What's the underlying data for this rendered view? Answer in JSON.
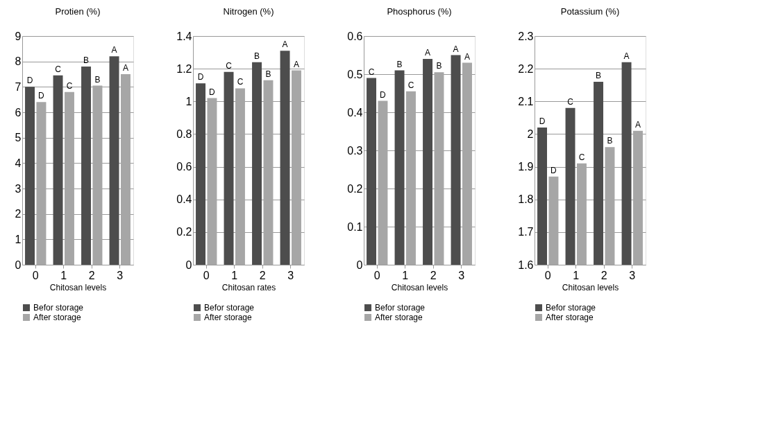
{
  "chart_data": [
    {
      "type": "bar",
      "title": "Protien (%)",
      "xlabel": "Chitosan levels",
      "categories": [
        "0",
        "1",
        "2",
        "3"
      ],
      "ylim": [
        0,
        9
      ],
      "yticks": [
        0,
        1,
        2,
        3,
        4,
        5,
        6,
        7,
        8,
        9
      ],
      "grid": "y",
      "legend": "bottom",
      "series": [
        {
          "name": "Befor storage",
          "color": "#4d4d4d",
          "values": [
            7.0,
            7.45,
            7.8,
            8.2
          ]
        },
        {
          "name": "After storage",
          "color": "#a6a6a6",
          "values": [
            6.4,
            6.8,
            7.05,
            7.5
          ]
        }
      ],
      "annotations": [
        {
          "text": "D",
          "x": "0",
          "y": 7.0
        },
        {
          "text": "D",
          "x": "0",
          "y": 6.4
        },
        {
          "text": "C",
          "x": "1",
          "y": 7.45
        },
        {
          "text": "C",
          "x": "1",
          "y": 6.8
        },
        {
          "text": "B",
          "x": "2",
          "y": 7.8
        },
        {
          "text": "B",
          "x": "2",
          "y": 7.05
        },
        {
          "text": "A",
          "x": "3",
          "y": 8.2
        },
        {
          "text": "A",
          "x": "3",
          "y": 7.5
        }
      ]
    },
    {
      "type": "bar",
      "title": "Nitrogen (%)",
      "xlabel": "Chitosan rates",
      "categories": [
        "0",
        "1",
        "2",
        "3"
      ],
      "ylim": [
        0,
        1.4
      ],
      "yticks": [
        0,
        0.2,
        0.4,
        0.6,
        0.8,
        1,
        1.2,
        1.4
      ],
      "grid": "y",
      "legend": "bottom",
      "series": [
        {
          "name": "Befor storage",
          "color": "#4d4d4d",
          "values": [
            1.11,
            1.18,
            1.24,
            1.31
          ]
        },
        {
          "name": "After storage",
          "color": "#a6a6a6",
          "values": [
            1.02,
            1.08,
            1.13,
            1.19
          ]
        }
      ],
      "annotations": [
        {
          "text": "D",
          "x": "0",
          "y": 1.11
        },
        {
          "text": "D",
          "x": "0",
          "y": 1.02
        },
        {
          "text": "C",
          "x": "1",
          "y": 1.18
        },
        {
          "text": "C",
          "x": "1",
          "y": 1.08
        },
        {
          "text": "B",
          "x": "2",
          "y": 1.24
        },
        {
          "text": "B",
          "x": "2",
          "y": 1.13
        },
        {
          "text": "A",
          "x": "3",
          "y": 1.31
        },
        {
          "text": "A",
          "x": "3",
          "y": 1.19
        }
      ]
    },
    {
      "type": "bar",
      "title": "Phosphorus (%)",
      "xlabel": "Chitosan levels",
      "categories": [
        "0",
        "1",
        "2",
        "3"
      ],
      "ylim": [
        0,
        0.6
      ],
      "yticks": [
        0,
        0.1,
        0.2,
        0.3,
        0.4,
        0.5,
        0.6
      ],
      "grid": "y",
      "legend": "bottom",
      "series": [
        {
          "name": "Befor storage",
          "color": "#4d4d4d",
          "values": [
            0.49,
            0.51,
            0.54,
            0.55
          ]
        },
        {
          "name": "After storage",
          "color": "#a6a6a6",
          "values": [
            0.43,
            0.455,
            0.505,
            0.53
          ]
        }
      ],
      "annotations": [
        {
          "text": "C",
          "x": "0",
          "y": 0.49
        },
        {
          "text": "D",
          "x": "0",
          "y": 0.43
        },
        {
          "text": "B",
          "x": "1",
          "y": 0.51
        },
        {
          "text": "C",
          "x": "1",
          "y": 0.455
        },
        {
          "text": "A",
          "x": "2",
          "y": 0.54
        },
        {
          "text": "B",
          "x": "2",
          "y": 0.505
        },
        {
          "text": "A",
          "x": "3",
          "y": 0.55
        },
        {
          "text": "A",
          "x": "3",
          "y": 0.53
        }
      ]
    },
    {
      "type": "bar",
      "title": "Potassium (%)",
      "xlabel": "Chitosan levels",
      "categories": [
        "0",
        "1",
        "2",
        "3"
      ],
      "ylim": [
        1.6,
        2.3
      ],
      "yticks": [
        1.6,
        1.7,
        1.8,
        1.9,
        2,
        2.1,
        2.2,
        2.3
      ],
      "grid": "y",
      "legend": "bottom",
      "series": [
        {
          "name": "Befor storage",
          "color": "#4d4d4d",
          "values": [
            2.02,
            2.08,
            2.16,
            2.22
          ]
        },
        {
          "name": "After storage",
          "color": "#a6a6a6",
          "values": [
            1.87,
            1.91,
            1.96,
            2.01
          ]
        }
      ],
      "annotations": [
        {
          "text": "D",
          "x": "0",
          "y": 2.02
        },
        {
          "text": "D",
          "x": "0",
          "y": 1.87
        },
        {
          "text": "C",
          "x": "1",
          "y": 2.08
        },
        {
          "text": "C",
          "x": "1",
          "y": 1.91
        },
        {
          "text": "B",
          "x": "2",
          "y": 2.16
        },
        {
          "text": "B",
          "x": "2",
          "y": 1.96
        },
        {
          "text": "A",
          "x": "3",
          "y": 2.22
        },
        {
          "text": "A",
          "x": "3",
          "y": 2.01
        }
      ]
    }
  ]
}
